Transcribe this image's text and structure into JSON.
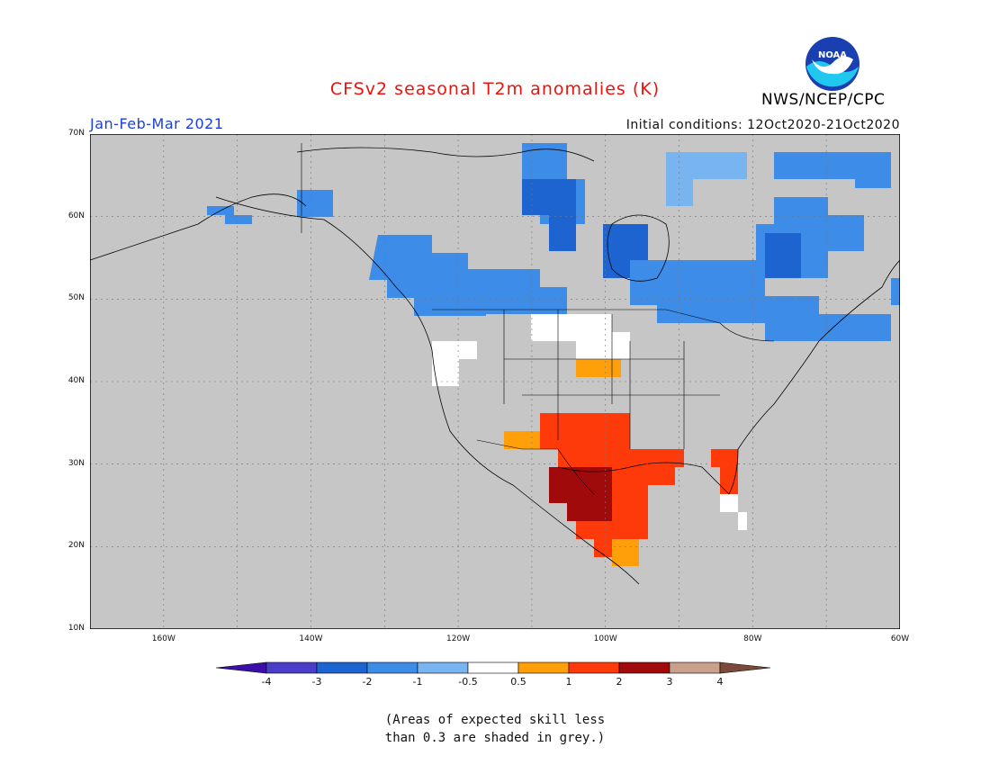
{
  "header": {
    "title": "CFSv2 seasonal T2m anomalies (K)",
    "period": "Jan-Feb-Mar 2021",
    "initial_conditions": "Initial conditions: 12Oct2020-21Oct2020",
    "agency": "NWS/NCEP/CPC",
    "logo_text": "NOAA"
  },
  "map": {
    "region": "North America",
    "lon_range": [
      -170,
      -60
    ],
    "lat_range": [
      10,
      70
    ],
    "grey_color": "#c6c6c6",
    "lat_labels": [
      "70N",
      "60N",
      "50N",
      "40N",
      "30N",
      "20N",
      "10N"
    ],
    "lon_labels": [
      "160W",
      "140W",
      "120W",
      "100W",
      "80W",
      "60W"
    ]
  },
  "legend": {
    "labels": [
      "-4",
      "-3",
      "-2",
      "-1",
      "-0.5",
      "0.5",
      "1",
      "2",
      "3",
      "4"
    ],
    "colors": [
      "#3a10a8",
      "#4a3ec8",
      "#1e64d0",
      "#3c8ce8",
      "#78b4f0",
      "#ffffff",
      "#ff9f0a",
      "#ff3a0a",
      "#a00a0a",
      "#c8a08c",
      "#7a4a3a"
    ]
  },
  "note": {
    "line1": "(Areas of expected skill less",
    "line2": "than 0.3 are shaded in grey.)"
  }
}
